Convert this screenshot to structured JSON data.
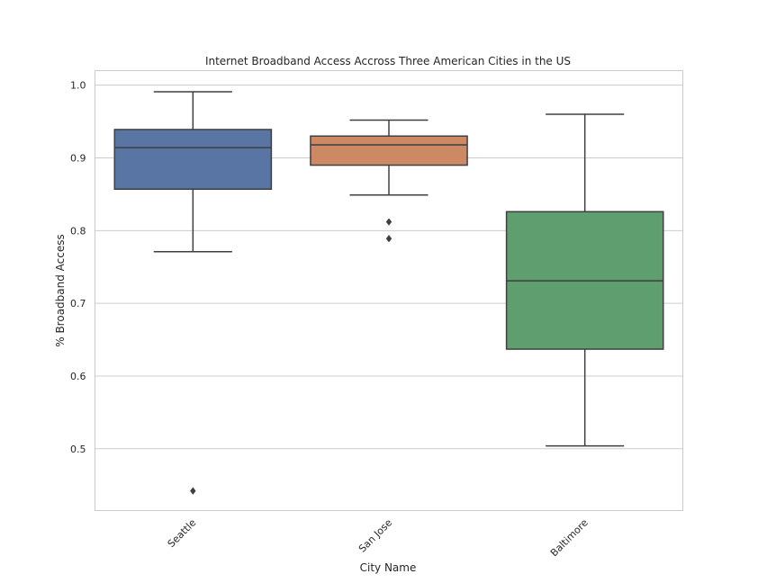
{
  "chart_data": {
    "type": "box",
    "title": "Internet Broadband Access Accross Three American Cities in the US",
    "xlabel": "City Name",
    "ylabel": "% Broadband Access",
    "ylim": [
      0.415,
      1.02
    ],
    "yticks": [
      0.5,
      0.6,
      0.7,
      0.8,
      0.9,
      1.0
    ],
    "ytick_labels": [
      "0.5",
      "0.6",
      "0.7",
      "0.8",
      "0.9",
      "1.0"
    ],
    "grid": "horizontal",
    "categories": [
      "Seattle",
      "San Jose",
      "Baltimore"
    ],
    "boxes": [
      {
        "category": "Seattle",
        "color": "#5875a4",
        "whisker_low": 0.771,
        "q1": 0.857,
        "median": 0.914,
        "q3": 0.939,
        "whisker_high": 0.991,
        "outliers": [
          0.442
        ]
      },
      {
        "category": "San Jose",
        "color": "#cc8963",
        "whisker_low": 0.849,
        "q1": 0.89,
        "median": 0.918,
        "q3": 0.93,
        "whisker_high": 0.952,
        "outliers": [
          0.812,
          0.789
        ]
      },
      {
        "category": "Baltimore",
        "color": "#5f9e6e",
        "whisker_low": 0.504,
        "q1": 0.637,
        "median": 0.731,
        "q3": 0.826,
        "whisker_high": 0.96,
        "outliers": []
      }
    ]
  }
}
